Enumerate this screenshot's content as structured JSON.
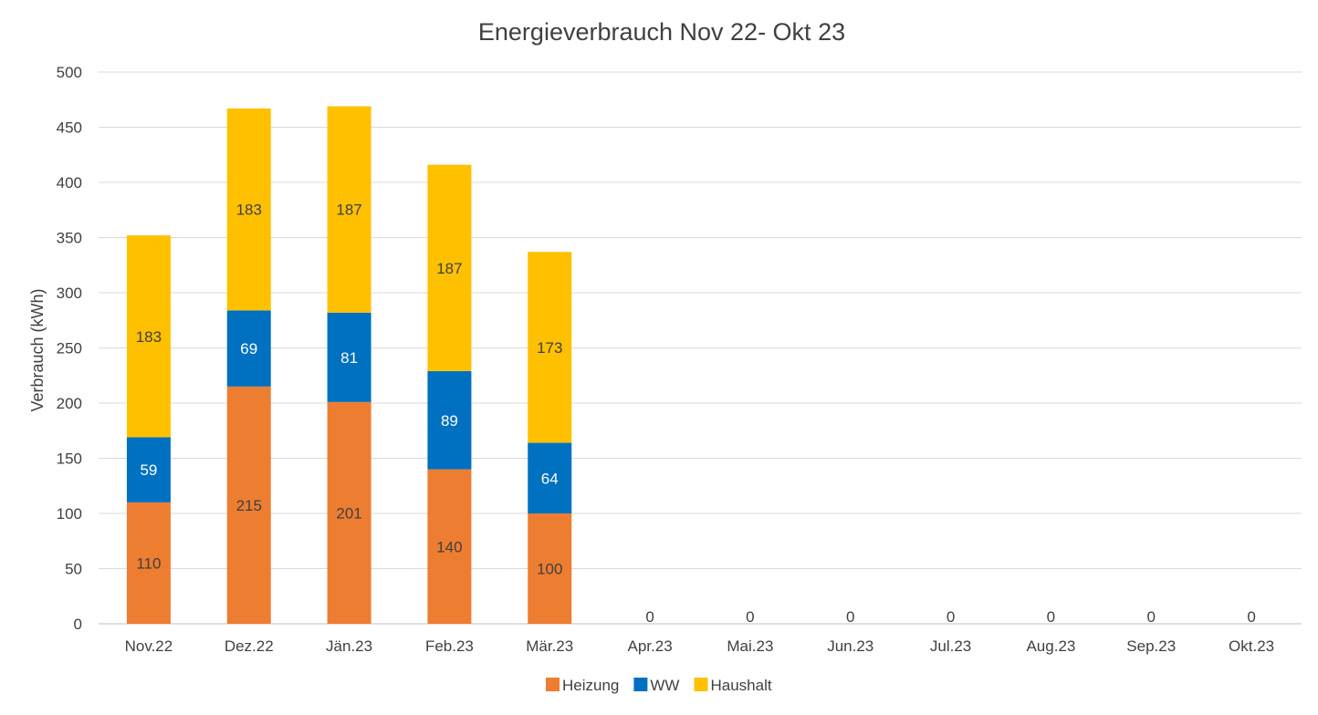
{
  "chart_data": {
    "type": "bar",
    "stacked": true,
    "title": "Energieverbrauch Nov 22- Okt 23",
    "ylabel": "Verbrauch (kWh)",
    "xlabel": "",
    "ylim": [
      0,
      500
    ],
    "yticks": [
      0,
      50,
      100,
      150,
      200,
      250,
      300,
      350,
      400,
      450,
      500
    ],
    "grid": true,
    "legend_position": "bottom",
    "categories": [
      "Nov.22",
      "Dez.22",
      "Jän.23",
      "Feb.23",
      "Mär.23",
      "Apr.23",
      "Mai.23",
      "Jun.23",
      "Jul.23",
      "Aug.23",
      "Sep.23",
      "Okt.23"
    ],
    "series": [
      {
        "name": "Heizung",
        "color": "#ED7D31",
        "label_color": "#404040",
        "values": [
          110,
          215,
          201,
          140,
          100,
          0,
          0,
          0,
          0,
          0,
          0,
          0
        ]
      },
      {
        "name": "WW",
        "color": "#0070C0",
        "label_color": "#FFFFFF",
        "values": [
          59,
          69,
          81,
          89,
          64,
          0,
          0,
          0,
          0,
          0,
          0,
          0
        ]
      },
      {
        "name": "Haushalt",
        "color": "#FFC000",
        "label_color": "#404040",
        "values": [
          183,
          183,
          187,
          187,
          173,
          0,
          0,
          0,
          0,
          0,
          0,
          0
        ]
      }
    ],
    "total_labels": [
      "",
      "",
      "",
      "",
      "",
      "0",
      "0",
      "0",
      "0",
      "0",
      "0",
      "0"
    ]
  }
}
